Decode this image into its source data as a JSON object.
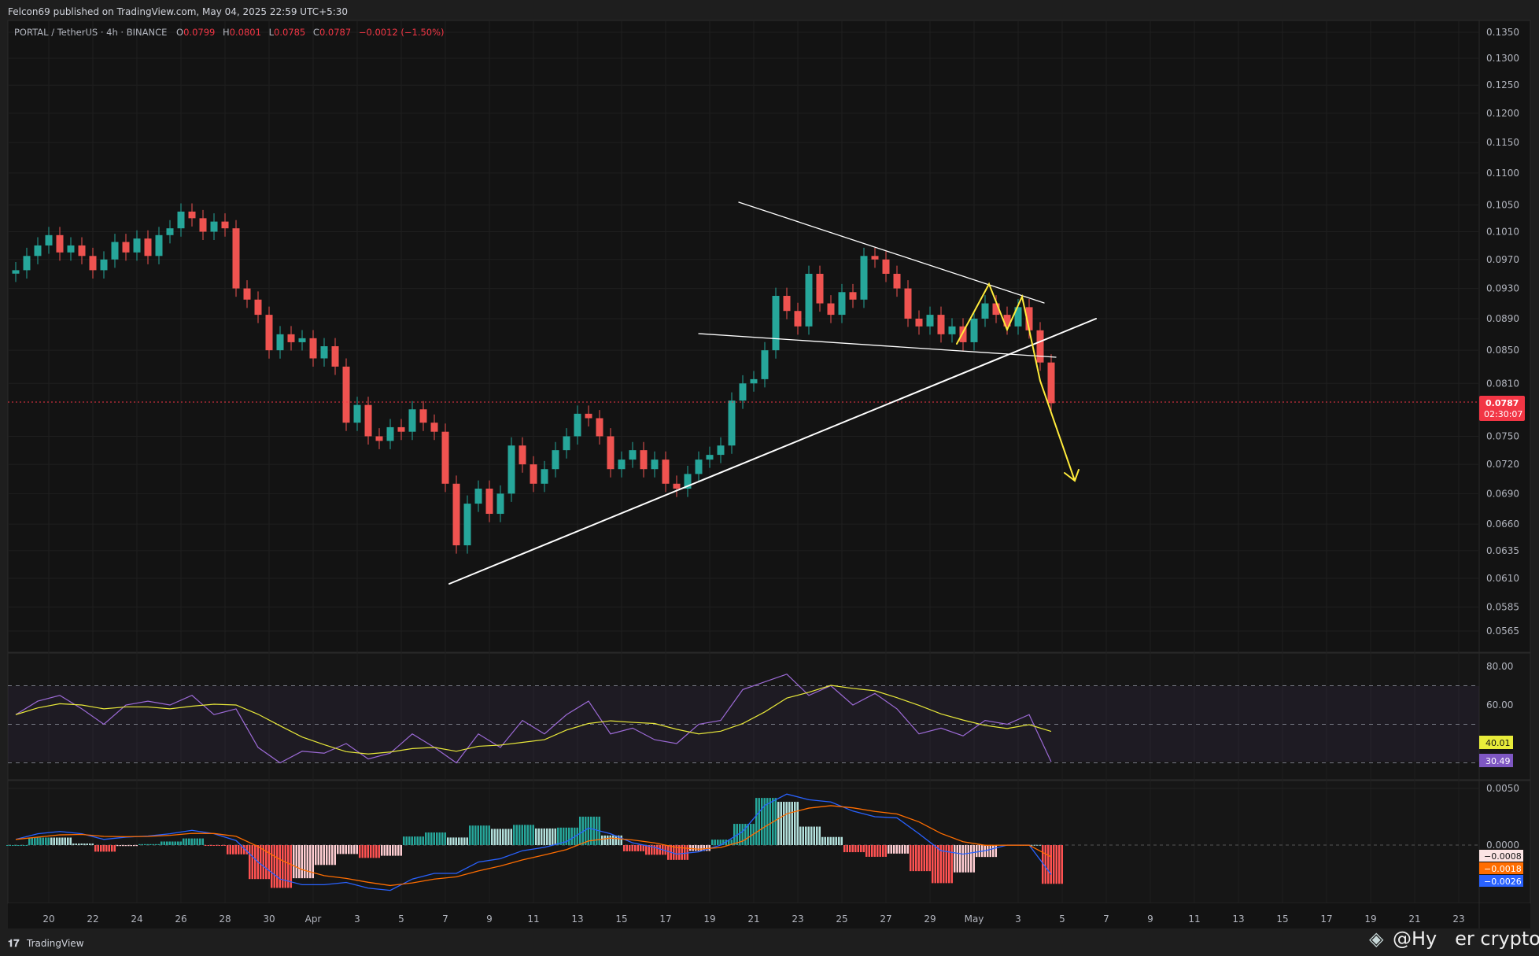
{
  "header": {
    "published": "Felcon69 published on TradingView.com, May 04, 2025 22:59 UTC+5:30"
  },
  "legend": {
    "symbol": "PORTAL / TetherUS · 4h · BINANCE",
    "o_label": "O",
    "o": "0.0799",
    "h_label": "H",
    "h": "0.0801",
    "l_label": "L",
    "l": "0.0785",
    "c_label": "C",
    "c": "0.0787",
    "change": "−0.0012 (−1.50%)"
  },
  "price_axis": [
    "0.1350",
    "0.1300",
    "0.1250",
    "0.1200",
    "0.1150",
    "0.1100",
    "0.1050",
    "0.1010",
    "0.0970",
    "0.0930",
    "0.0890",
    "0.0850",
    "0.0810",
    "0.0750",
    "0.0720",
    "0.0690",
    "0.0660",
    "0.0635",
    "0.0610",
    "0.0585",
    "0.0565"
  ],
  "last_price": {
    "value": "0.0787",
    "countdown": "02:30:07",
    "color": "#f23645"
  },
  "rsi_axis": [
    "80.00",
    "60.00"
  ],
  "rsi_labels": {
    "signal": "40.01",
    "rsi": "30.49"
  },
  "macd_axis": [
    "0.0050",
    "0.0000"
  ],
  "macd_labels": {
    "histogram": "−0.0008",
    "signal": "−0.0018",
    "macd": "−0.0026"
  },
  "date_axis": [
    "20",
    "22",
    "24",
    "26",
    "28",
    "30",
    "Apr",
    "3",
    "5",
    "7",
    "9",
    "11",
    "13",
    "15",
    "17",
    "19",
    "21",
    "23",
    "25",
    "27",
    "29",
    "May",
    "3",
    "5",
    "7",
    "9",
    "11",
    "13",
    "15",
    "17",
    "19",
    "21",
    "23"
  ],
  "footer": {
    "logo": "TradingView",
    "watermark": "@Hy   er crypto"
  },
  "colors": {
    "up": "#26a69a",
    "down": "#ef5350",
    "rsi": "#9c6ad6",
    "rsi_ma": "#e8e83a",
    "macd": "#2962ff",
    "signal": "#ff6d00",
    "annotation": "#ffffff",
    "arrow": "#ffeb3b"
  },
  "chart_data": {
    "type": "candlestick",
    "scale": "log",
    "interval": "12h resampled of 4h",
    "start": "2025-03-18 12:00",
    "closes": [
      0.0955,
      0.0975,
      0.099,
      0.1005,
      0.098,
      0.099,
      0.0975,
      0.0955,
      0.097,
      0.0995,
      0.098,
      0.1,
      0.0975,
      0.1005,
      0.1015,
      0.104,
      0.103,
      0.101,
      0.1025,
      0.1015,
      0.093,
      0.0915,
      0.0895,
      0.085,
      0.087,
      0.086,
      0.0865,
      0.084,
      0.0855,
      0.083,
      0.0765,
      0.0785,
      0.075,
      0.0745,
      0.076,
      0.0755,
      0.078,
      0.0765,
      0.0755,
      0.07,
      0.064,
      0.068,
      0.0695,
      0.067,
      0.069,
      0.074,
      0.072,
      0.07,
      0.0715,
      0.0735,
      0.075,
      0.0775,
      0.077,
      0.075,
      0.0715,
      0.0725,
      0.0735,
      0.0715,
      0.0725,
      0.07,
      0.0695,
      0.071,
      0.0725,
      0.073,
      0.074,
      0.079,
      0.081,
      0.0815,
      0.085,
      0.092,
      0.09,
      0.088,
      0.095,
      0.091,
      0.0895,
      0.0925,
      0.0915,
      0.0975,
      0.097,
      0.095,
      0.093,
      0.089,
      0.088,
      0.0895,
      0.087,
      0.088,
      0.086,
      0.089,
      0.091,
      0.0895,
      0.088,
      0.0905,
      0.0875,
      0.0835,
      0.0787
    ],
    "rsi_daily": [
      55,
      62,
      65,
      58,
      50,
      60,
      62,
      60,
      65,
      55,
      58,
      38,
      30,
      36,
      35,
      40,
      32,
      35,
      45,
      38,
      30,
      45,
      38,
      52,
      45,
      55,
      62,
      45,
      48,
      42,
      40,
      50,
      52,
      68,
      72,
      76,
      65,
      70,
      60,
      66,
      58,
      45,
      48,
      44,
      52,
      50,
      55,
      30.49
    ],
    "rsi_levels": [
      70,
      50,
      30
    ],
    "macd_daily": [
      0.0005,
      0.001,
      0.0012,
      0.001,
      0.0005,
      0.0007,
      0.0008,
      0.001,
      0.0013,
      0.001,
      0.0004,
      -0.0015,
      -0.003,
      -0.0035,
      -0.0035,
      -0.0033,
      -0.0038,
      -0.004,
      -0.003,
      -0.0025,
      -0.0025,
      -0.0015,
      -0.0012,
      -0.0005,
      -0.0002,
      0.0003,
      0.0015,
      0.001,
      0.0002,
      -0.0002,
      -0.0008,
      -0.0006,
      0.0,
      0.0012,
      0.0035,
      0.0045,
      0.004,
      0.0038,
      0.003,
      0.0025,
      0.0024,
      0.001,
      -0.0005,
      -0.0008,
      -0.0005,
      0.0,
      0.0,
      -0.0026
    ]
  }
}
